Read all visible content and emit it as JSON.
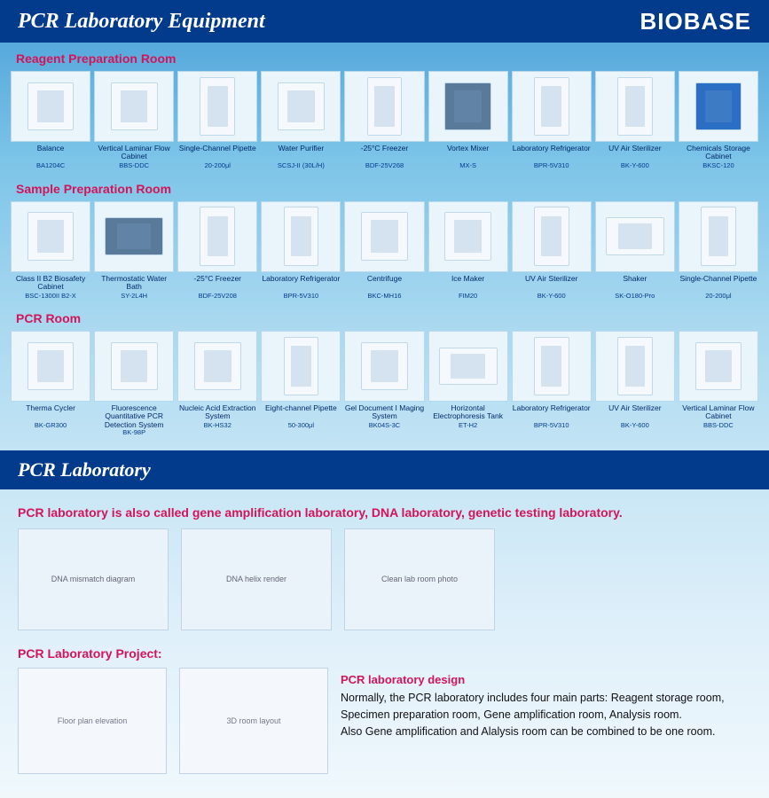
{
  "header": {
    "title": "PCR Laboratory Equipment",
    "logo": "BIOBASE"
  },
  "sections": [
    {
      "label": "Reagent Preparation Room",
      "items": [
        {
          "name": "Balance",
          "model": "BA1204C",
          "shape": "equip"
        },
        {
          "name": "Vertical Laminar Flow Cabinet",
          "model": "BBS-DDC",
          "shape": "equip"
        },
        {
          "name": "Single-Channel Pipette",
          "model": "20-200μl",
          "shape": "equip tall"
        },
        {
          "name": "Water Purifier",
          "model": "SCSJ-II (30L/H)",
          "shape": "equip"
        },
        {
          "name": "-25°C Freezer",
          "model": "BDF-25V268",
          "shape": "equip tall"
        },
        {
          "name": "Vortex Mixer",
          "model": "MX-S",
          "shape": "equip dark"
        },
        {
          "name": "Laboratory Refrigerator",
          "model": "BPR-5V310",
          "shape": "equip tall"
        },
        {
          "name": "UV Air Sterilizer",
          "model": "BK-Y-600",
          "shape": "equip tall"
        },
        {
          "name": "Chemicals Storage Cabinet",
          "model": "BKSC-120",
          "shape": "equip blue"
        }
      ]
    },
    {
      "label": "Sample Preparation Room",
      "items": [
        {
          "name": "Class II B2 Biosafety Cabinet",
          "model": "BSC-1300II B2-X",
          "shape": "equip"
        },
        {
          "name": "Thermostatic Water Bath",
          "model": "SY-2L4H",
          "shape": "equip wide dark"
        },
        {
          "name": "-25°C Freezer",
          "model": "BDF-25V208",
          "shape": "equip tall"
        },
        {
          "name": "Laboratory Refrigerator",
          "model": "BPR-5V310",
          "shape": "equip tall"
        },
        {
          "name": "Centrifuge",
          "model": "BKC-MH16",
          "shape": "equip"
        },
        {
          "name": "Ice Maker",
          "model": "FIM20",
          "shape": "equip"
        },
        {
          "name": "UV Air Sterilizer",
          "model": "BK-Y-600",
          "shape": "equip tall"
        },
        {
          "name": "Shaker",
          "model": "SK-O180-Pro",
          "shape": "equip wide"
        },
        {
          "name": "Single-Channel Pipette",
          "model": "20-200μl",
          "shape": "equip tall"
        }
      ]
    },
    {
      "label": "PCR Room",
      "items": [
        {
          "name": "Therma Cycler",
          "model": "BK-GR300",
          "shape": "equip"
        },
        {
          "name": "Fluorescence Quantitative PCR Detection System",
          "model": "BK-98P",
          "shape": "equip"
        },
        {
          "name": "Nucleic Acid Extraction System",
          "model": "BK-HS32",
          "shape": "equip"
        },
        {
          "name": "Eight-channel Pipette",
          "model": "50-300μl",
          "shape": "equip tall"
        },
        {
          "name": "Gel Document I Maging System",
          "model": "BK04S-3C",
          "shape": "equip"
        },
        {
          "name": "Horizontal Electrophoresis Tank",
          "model": "ET-H2",
          "shape": "equip wide"
        },
        {
          "name": "Laboratory Refrigerator",
          "model": "BPR-5V310",
          "shape": "equip tall"
        },
        {
          "name": "UV Air Sterilizer",
          "model": "BK-Y-600",
          "shape": "equip tall"
        },
        {
          "name": "Vertical Laminar Flow Cabinet",
          "model": "BBS-DDC",
          "shape": "equip"
        }
      ]
    }
  ],
  "lower": {
    "title": "PCR Laboratory",
    "subtitle": "PCR laboratory is also called gene amplification laboratory, DNA laboratory, genetic testing laboratory.",
    "images": [
      "DNA mismatch diagram",
      "DNA helix render",
      "Clean lab room photo"
    ],
    "project_title": "PCR Laboratory Project:",
    "plans": [
      "Floor plan elevation",
      "3D room layout"
    ],
    "design": {
      "heading": "PCR laboratory design",
      "line1": "Normally, the PCR laboratory includes four main parts: Reagent storage room,",
      "line2": "Specimen preparation room, Gene amplification room, Analysis room.",
      "line3": "Also Gene amplification and Alalysis room can be combined to be one room."
    }
  },
  "colors": {
    "navy": "#023a8c",
    "magenta": "#d4145a",
    "bg_top": "#4a9fd8",
    "card_bg": "#eaf4fb"
  }
}
